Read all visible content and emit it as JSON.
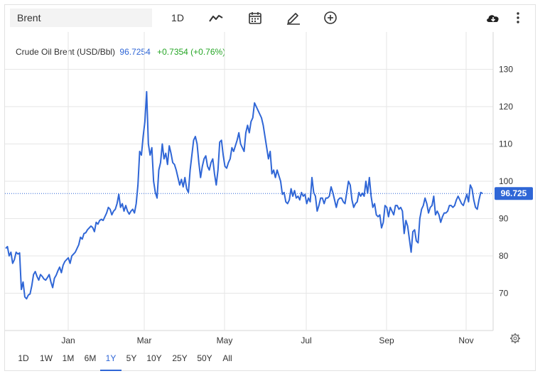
{
  "toolbar": {
    "symbol_value": "Brent",
    "interval_label": "1D",
    "icons": [
      "line-chart-icon",
      "calendar-icon",
      "draw-pencil-icon",
      "add-circle-icon",
      "cloud-download-icon",
      "more-vertical-icon"
    ]
  },
  "legend": {
    "name": "Crude Oil Brent (USD/Bbl)",
    "price": "96.7254",
    "change": "+0.7354 (+0.76%)"
  },
  "price_tag": "96.725",
  "ranges": {
    "items": [
      "1D",
      "1W",
      "1M",
      "6M",
      "1Y",
      "5Y",
      "10Y",
      "25Y",
      "50Y",
      "All"
    ],
    "active": "1Y"
  },
  "colors": {
    "line": "#2f66d6",
    "positive": "#26a626",
    "grid": "#e6e6e6"
  },
  "chart_data": {
    "type": "line",
    "title": "Crude Oil Brent (USD/Bbl)",
    "x_tick_labels": [
      "Jan",
      "Mar",
      "May",
      "Jul",
      "Sep",
      "Nov"
    ],
    "y_ticks": [
      70,
      80,
      90,
      100,
      110,
      120,
      130
    ],
    "ylim": [
      60,
      140
    ],
    "grid": true,
    "last_value": 96.725,
    "series": [
      {
        "values": [
          82,
          82.5,
          80,
          81,
          78,
          79,
          81,
          80.5,
          80.8,
          71,
          73,
          69,
          68.5,
          69.5,
          69.8,
          72,
          75,
          75.8,
          74.5,
          73.5,
          75,
          74.5,
          73.8,
          73.5,
          74.2,
          75,
          73,
          71.5,
          74,
          74.8,
          76,
          77,
          75.5,
          77.5,
          78.5,
          79,
          79.5,
          78,
          80,
          80.5,
          81,
          82,
          83,
          85,
          84.5,
          86,
          86.2,
          87,
          87.5,
          88,
          87.6,
          86.5,
          89,
          88.5,
          89.5,
          89.8,
          89.5,
          90.5,
          91.5,
          93,
          92.5,
          91,
          92,
          92.5,
          94,
          96.5,
          93,
          94,
          92,
          93.5,
          92,
          91.2,
          92,
          92.5,
          91.5,
          94,
          99,
          108,
          107,
          112,
          116,
          124,
          110,
          107,
          109,
          100,
          97,
          95.5,
          103,
          105,
          110,
          106,
          107.5,
          104.5,
          109.5,
          107.5,
          105,
          104.5,
          103,
          101,
          99,
          100.5,
          98.5,
          101,
          98,
          97,
          103,
          107,
          111,
          112,
          110,
          105,
          101,
          104,
          106,
          106.8,
          104,
          103,
          105,
          106,
          102,
          99,
          103,
          110.5,
          111,
          107,
          104,
          103.5,
          105,
          106,
          109,
          108,
          109.5,
          111,
          113,
          110,
          109,
          108,
          113,
          115,
          113,
          116,
          117,
          121,
          120,
          119,
          118,
          117,
          115,
          112,
          109,
          106,
          108,
          102,
          103,
          101,
          103,
          101.5,
          100,
          96.5,
          97,
          94.5,
          94,
          95,
          98,
          96,
          97.5,
          95.5,
          96,
          95,
          97,
          96,
          96.5,
          94,
          95.5,
          94.5,
          101,
          97,
          96,
          92,
          93.5,
          95.5,
          95.5,
          94,
          95.5,
          95.5,
          96,
          98.5,
          97,
          95,
          93,
          95,
          95.5,
          95.5,
          94.5,
          94,
          97,
          100,
          99,
          95,
          93,
          94,
          94.5,
          97,
          96,
          96.8,
          96,
          100,
          96.8,
          101,
          96,
          93,
          94,
          91,
          90.5,
          91,
          87.5,
          89,
          93.5,
          93,
          90.5,
          93,
          92,
          91,
          93.5,
          93.5,
          92.5,
          93,
          92,
          86,
          89.5,
          88,
          84.5,
          81,
          86.5,
          87,
          84,
          83.5,
          90,
          92.5,
          93.5,
          95.5,
          94,
          91.5,
          93,
          93.5,
          96,
          91,
          92,
          91,
          89,
          90.5,
          91.5,
          91.5,
          92,
          93.5,
          93.5,
          93,
          93.5,
          95,
          96,
          95,
          94,
          93.5,
          95,
          96.5,
          94.5,
          99,
          98,
          95,
          93,
          92.5,
          95,
          97,
          96.725
        ]
      }
    ]
  }
}
